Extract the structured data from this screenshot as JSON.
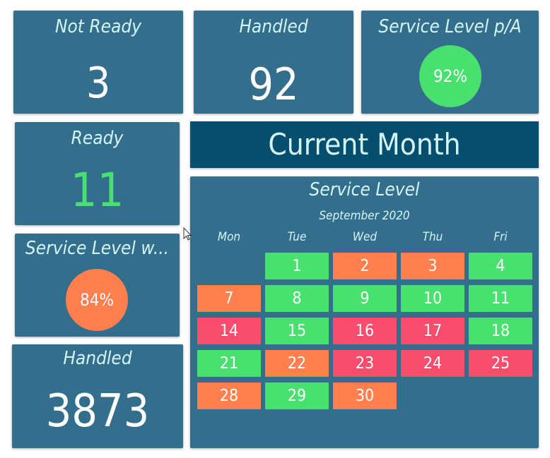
{
  "tiles": {
    "not_ready": {
      "title": "Not Ready",
      "value": "3"
    },
    "handled_today": {
      "title": "Handled",
      "value": "92"
    },
    "service_level_pa": {
      "title": "Service Level p/A",
      "value": "92%",
      "color": "#48e06f"
    },
    "ready": {
      "title": "Ready",
      "value": "11",
      "value_color": "#48e06f"
    },
    "service_level_w": {
      "title": "Service Level w...",
      "value": "84%",
      "color": "#ff7f4f"
    },
    "handled_total": {
      "title": "Handled",
      "value": "3873"
    }
  },
  "banner": {
    "title": "Current Month"
  },
  "calendar": {
    "title": "Service Level",
    "month": "September 2020",
    "weekdays": [
      "Mon",
      "Tue",
      "Wed",
      "Thu",
      "Fri"
    ],
    "days": [
      {
        "day": "1",
        "status": "good"
      },
      {
        "day": "2",
        "status": "warn"
      },
      {
        "day": "3",
        "status": "warn"
      },
      {
        "day": "4",
        "status": "good"
      },
      {
        "day": "7",
        "status": "warn"
      },
      {
        "day": "8",
        "status": "good"
      },
      {
        "day": "9",
        "status": "good"
      },
      {
        "day": "10",
        "status": "good"
      },
      {
        "day": "11",
        "status": "good"
      },
      {
        "day": "14",
        "status": "bad"
      },
      {
        "day": "15",
        "status": "good"
      },
      {
        "day": "16",
        "status": "bad"
      },
      {
        "day": "17",
        "status": "bad"
      },
      {
        "day": "18",
        "status": "good"
      },
      {
        "day": "21",
        "status": "good"
      },
      {
        "day": "22",
        "status": "warn"
      },
      {
        "day": "23",
        "status": "bad"
      },
      {
        "day": "24",
        "status": "bad"
      },
      {
        "day": "25",
        "status": "bad"
      },
      {
        "day": "28",
        "status": "warn"
      },
      {
        "day": "29",
        "status": "good"
      },
      {
        "day": "30",
        "status": "warn"
      }
    ],
    "status_colors": {
      "good": "#48e06f",
      "warn": "#ff7f4f",
      "bad": "#f94d6d"
    }
  },
  "cursor": {
    "icon": "mouse-pointer-icon"
  }
}
